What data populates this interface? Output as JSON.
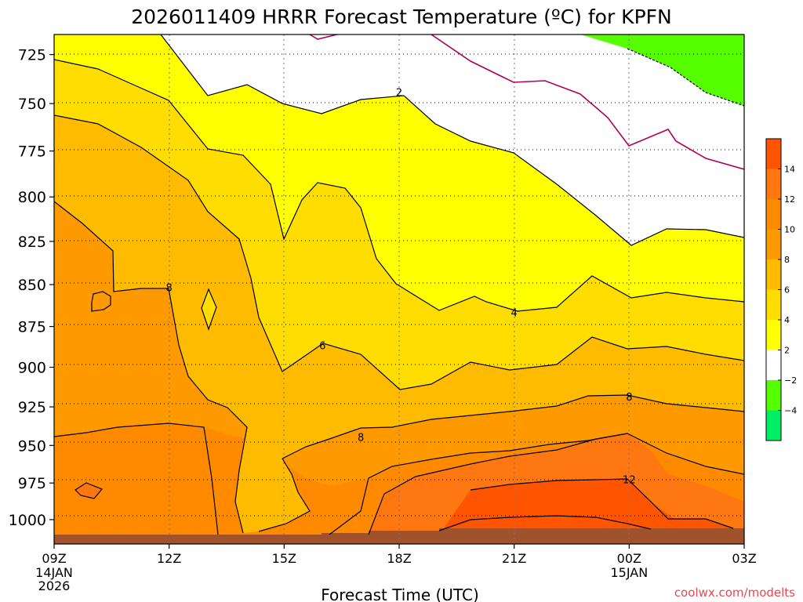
{
  "title": "2026011409 HRRR Forecast Temperature (ºC) for KPFN",
  "xlabel": "Forecast Time (UTC)",
  "credit": "coolwx.com/modelts",
  "chart_data": {
    "type": "contour",
    "variable": "Temperature (ºC)",
    "x_ticks": [
      {
        "hour": 0,
        "label": "09Z",
        "sub": [
          "14JAN",
          "2026"
        ]
      },
      {
        "hour": 3,
        "label": "12Z",
        "sub": []
      },
      {
        "hour": 6,
        "label": "15Z",
        "sub": []
      },
      {
        "hour": 9,
        "label": "18Z",
        "sub": []
      },
      {
        "hour": 12,
        "label": "21Z",
        "sub": []
      },
      {
        "hour": 15,
        "label": "00Z",
        "sub": [
          "15JAN"
        ]
      },
      {
        "hour": 18,
        "label": "03Z",
        "sub": []
      }
    ],
    "xlim_hours": [
      0,
      18
    ],
    "y_ticks": [
      725,
      750,
      775,
      800,
      825,
      850,
      875,
      900,
      925,
      950,
      975,
      1000
    ],
    "ylim_hpa": [
      1017,
      715
    ],
    "contour_labels": [
      {
        "value": "2",
        "hour": 9.0,
        "hpa": 744.5
      },
      {
        "value": "4",
        "hour": 12.0,
        "hpa": 867
      },
      {
        "value": "6",
        "hour": 7.0,
        "hpa": 887
      },
      {
        "value": "8",
        "hour": 3.0,
        "hpa": 852
      },
      {
        "value": "8",
        "hour": 8.0,
        "hpa": 945
      },
      {
        "value": "8",
        "hour": 15.0,
        "hpa": 919
      },
      {
        "value": "12",
        "hour": 15.0,
        "hpa": 973
      }
    ],
    "colorbar": {
      "labels": [
        "14",
        "12",
        "10",
        "8",
        "6",
        "4",
        "2",
        "−2",
        "−4"
      ],
      "colors": [
        "#ff5500",
        "#ff7711",
        "#ff8a00",
        "#ff9900",
        "#ffbb00",
        "#ffdd00",
        "#ffff00",
        "#ffffff",
        "#55ff00",
        "#00ee66"
      ]
    },
    "ground_color": "#a0522d",
    "fill_colors": {
      "lt_minus2": "#55ff00",
      "minus2_2": "#ffffff",
      "t2_4": "#ffff00",
      "t4_6": "#ffdd00",
      "t6_8": "#ffbb00",
      "t8_10": "#ff9900",
      "t10_12": "#ff8a00",
      "t12_14": "#ff7711",
      "t14_16": "#ff5500"
    },
    "freezing_line_color": "#b0005a"
  }
}
